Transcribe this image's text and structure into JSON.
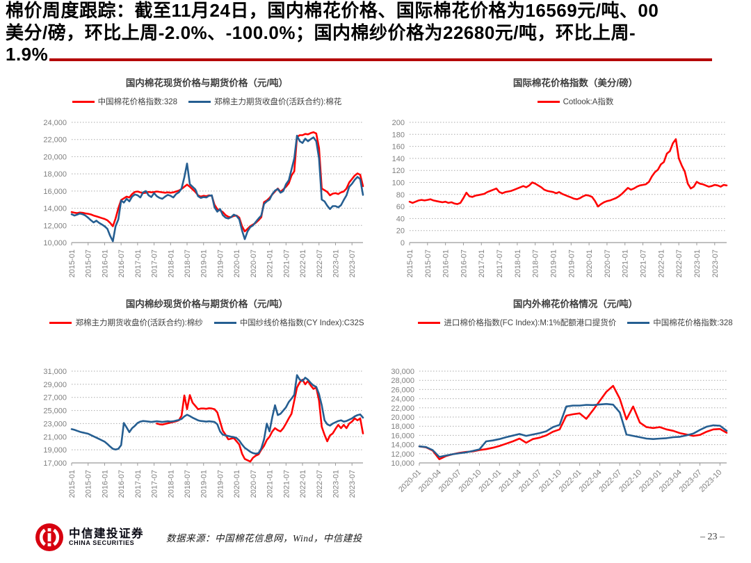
{
  "headline": {
    "lines": [
      "棉价周度跟踪：截至11月24日，国内棉花价格、国际棉花价格为16569元/吨、00",
      "美分/磅，环比上周-2.0%、-100.0%；国内棉纱价格为22680元/吨，环比上周-",
      "1.9%"
    ],
    "rule_color": "#b40000"
  },
  "colors": {
    "series_red": "#ff0000",
    "series_blue": "#255e91",
    "axis_label": "#7f7f7f",
    "gridline": "#a9a9a9"
  },
  "chart_data": [
    {
      "type": "line",
      "title": "国内棉花现货价格与期货价格（元/吨）",
      "x_start": "2015-01",
      "x_freq": "monthly",
      "x_tick_labels": [
        "2015-01",
        "2015-07",
        "2016-01",
        "2016-07",
        "2017-01",
        "2017-07",
        "2018-01",
        "2018-07",
        "2019-01",
        "2019-07",
        "2020-01",
        "2020-07",
        "2021-01",
        "2021-07",
        "2022-01",
        "2022-07",
        "2023-01",
        "2023-07"
      ],
      "tick_every": 6,
      "ylim": [
        10000,
        24000
      ],
      "y_step": 2000,
      "y_format": "thousands",
      "x_label_rotation": -90,
      "grid": "dotted",
      "legend_position": "top",
      "series": [
        {
          "name": "中国棉花价格指数:328",
          "color": "#ff0000",
          "values": [
            13550,
            13480,
            13420,
            13500,
            13460,
            13400,
            13350,
            13280,
            13150,
            13050,
            12950,
            12850,
            12750,
            12600,
            12300,
            11900,
            12800,
            14000,
            14950,
            15150,
            15350,
            15250,
            15650,
            15900,
            15950,
            15850,
            15750,
            15800,
            15900,
            15850,
            15880,
            15950,
            15900,
            15850,
            15800,
            15850,
            15800,
            15850,
            15950,
            16050,
            16250,
            16500,
            16750,
            16500,
            16200,
            15900,
            15500,
            15350,
            15450,
            15400,
            15500,
            15450,
            14400,
            13900,
            13750,
            13550,
            13200,
            13000,
            12950,
            13100,
            13150,
            12900,
            11900,
            11300,
            11600,
            11900,
            12100,
            12300,
            12600,
            12950,
            14700,
            14900,
            15200,
            15600,
            15950,
            16300,
            15900,
            16200,
            16500,
            16900,
            17800,
            18300,
            22300,
            22500,
            22500,
            22650,
            22600,
            22750,
            22850,
            22700,
            21000,
            16300,
            16100,
            15900,
            15500,
            15700,
            15750,
            15650,
            15850,
            15950,
            16300,
            17000,
            17400,
            17800,
            18050,
            17900,
            16569
          ]
        },
        {
          "name": "郑棉主力期货收盘价(活跃合约):棉花",
          "color": "#255e91",
          "values": [
            13300,
            13150,
            13250,
            13380,
            13300,
            13150,
            12900,
            12600,
            12350,
            12550,
            12300,
            12100,
            11900,
            11600,
            10800,
            10150,
            11900,
            12700,
            14900,
            14650,
            15100,
            14800,
            15350,
            15600,
            15500,
            15250,
            15850,
            16000,
            15500,
            15300,
            15750,
            15400,
            15200,
            15100,
            15350,
            15550,
            15450,
            15250,
            15650,
            15850,
            16300,
            17600,
            19200,
            16800,
            16500,
            16200,
            15400,
            15200,
            15300,
            15250,
            15450,
            15500,
            14100,
            13600,
            13900,
            13200,
            12900,
            12800,
            12950,
            13250,
            13100,
            12700,
            11400,
            10400,
            11300,
            11800,
            12000,
            12400,
            12800,
            13150,
            14500,
            14800,
            15000,
            15650,
            16050,
            16250,
            15800,
            16000,
            16800,
            17250,
            18500,
            19800,
            22450,
            21800,
            21600,
            22100,
            21800,
            22050,
            22250,
            21800,
            19800,
            15000,
            14800,
            14300,
            13900,
            14250,
            14250,
            14100,
            14350,
            14950,
            15500,
            16500,
            16850,
            17300,
            17650,
            17400,
            15550
          ]
        }
      ]
    },
    {
      "type": "line",
      "title": "国际棉花价格指数（美分/磅）",
      "x_start": "2015-01",
      "x_freq": "monthly",
      "x_tick_labels": [
        "2015-01",
        "2015-07",
        "2016-01",
        "2016-07",
        "2017-01",
        "2017-07",
        "2018-01",
        "2018-07",
        "2019-01",
        "2019-07",
        "2020-01",
        "2020-07",
        "2021-01",
        "2021-07",
        "2022-01",
        "2022-07",
        "2023-01",
        "2023-07"
      ],
      "tick_every": 6,
      "ylim": [
        0,
        200
      ],
      "y_step": 20,
      "y_format": "plain",
      "x_label_rotation": -90,
      "grid": "dotted",
      "legend_position": "top",
      "series": [
        {
          "name": "Cotlook:A指数",
          "color": "#ff0000",
          "values": [
            68,
            66,
            68,
            70,
            71,
            70,
            71,
            72,
            70,
            69,
            68,
            67,
            68,
            66,
            67,
            65,
            64,
            66,
            74,
            83,
            77,
            76,
            78,
            79,
            80,
            81,
            84,
            86,
            88,
            90,
            84,
            82,
            84,
            85,
            86,
            88,
            90,
            92,
            94,
            92,
            95,
            100,
            98,
            95,
            92,
            88,
            86,
            85,
            84,
            82,
            84,
            81,
            79,
            77,
            75,
            73,
            72,
            74,
            77,
            79,
            78,
            76,
            69,
            60,
            64,
            67,
            69,
            70,
            72,
            74,
            77,
            81,
            86,
            91,
            88,
            90,
            93,
            95,
            96,
            97,
            101,
            110,
            117,
            121,
            130,
            134,
            148,
            152,
            165,
            172,
            140,
            128,
            118,
            98,
            90,
            93,
            101,
            98,
            97,
            95,
            93,
            94,
            96,
            95,
            93,
            96,
            95
          ]
        }
      ]
    },
    {
      "type": "line",
      "title": "国内棉纱现货价格与期货价格（元/吨）",
      "x_start": "2015-01",
      "x_freq": "monthly",
      "x_tick_labels": [
        "2015-01",
        "2015-07",
        "2016-01",
        "2016-07",
        "2017-01",
        "2017-07",
        "2018-01",
        "2018-07",
        "2019-01",
        "2019-07",
        "2020-01",
        "2020-07",
        "2021-01",
        "2021-07",
        "2022-01",
        "2022-07",
        "2023-01",
        "2023-07"
      ],
      "tick_every": 6,
      "ylim": [
        17000,
        31000
      ],
      "y_step": 2000,
      "y_format": "thousands",
      "x_label_rotation": -90,
      "grid": "dotted",
      "legend_position": "top",
      "series": [
        {
          "name": "郑棉主力期货收盘价(活跃合约):棉纱",
          "color": "#ff0000",
          "values": [
            null,
            null,
            null,
            null,
            null,
            null,
            null,
            null,
            null,
            null,
            null,
            null,
            null,
            null,
            null,
            null,
            null,
            null,
            null,
            null,
            null,
            null,
            null,
            null,
            null,
            null,
            null,
            null,
            null,
            null,
            null,
            23000,
            22900,
            22850,
            22950,
            23050,
            23150,
            23250,
            23350,
            23500,
            24200,
            27300,
            25200,
            27350,
            26200,
            25700,
            25200,
            25300,
            25300,
            25250,
            25350,
            25300,
            25200,
            24700,
            23300,
            21900,
            21300,
            20600,
            20700,
            20800,
            20300,
            19800,
            18400,
            17600,
            17400,
            17200,
            17800,
            18100,
            18300,
            19000,
            19600,
            20500,
            21000,
            21800,
            22300,
            22000,
            21800,
            22300,
            23000,
            23800,
            24500,
            26500,
            28500,
            29300,
            29700,
            29000,
            29500,
            28800,
            28300,
            28500,
            26500,
            22500,
            21300,
            20300,
            21200,
            21500,
            22200,
            22800,
            22300,
            22800,
            22300,
            23000,
            23300,
            23800,
            23500,
            23800,
            21500
          ]
        },
        {
          "name": "中国纱线价格指数(CY Index):C32S",
          "color": "#255e91",
          "values": [
            22150,
            22050,
            21900,
            21750,
            21650,
            21550,
            21450,
            21250,
            21050,
            20850,
            20650,
            20450,
            20250,
            19900,
            19500,
            19150,
            19050,
            19150,
            19700,
            23100,
            22400,
            21700,
            22300,
            22650,
            23100,
            23300,
            23400,
            23350,
            23300,
            23250,
            23300,
            23350,
            23300,
            23250,
            23300,
            23350,
            23300,
            23350,
            23450,
            23550,
            23700,
            24100,
            24350,
            24150,
            23900,
            23700,
            23500,
            23400,
            23350,
            23300,
            23350,
            23300,
            23250,
            22900,
            21800,
            21300,
            21200,
            21100,
            21000,
            20950,
            20800,
            20400,
            19800,
            19300,
            19000,
            18700,
            18500,
            18400,
            18500,
            19200,
            20600,
            23000,
            21800,
            24000,
            25800,
            24300,
            24500,
            25000,
            25500,
            26300,
            26800,
            27400,
            30400,
            29700,
            29500,
            30000,
            29700,
            29200,
            28800,
            28600,
            27500,
            25800,
            23500,
            22900,
            22700,
            23000,
            23200,
            23400,
            23500,
            23300,
            23400,
            23600,
            23800,
            24100,
            24300,
            24400,
            23900
          ]
        }
      ]
    },
    {
      "type": "line",
      "title": "国内外棉花价格情况（元/吨）",
      "x_start": "2020-01",
      "x_freq": "monthly",
      "x_tick_labels": [
        "2020-01",
        "2020-04",
        "2020-07",
        "2020-10",
        "2021-01",
        "2021-04",
        "2021-07",
        "2021-10",
        "2022-01",
        "2022-04",
        "2022-07",
        "2022-10",
        "2023-01",
        "2023-04",
        "2023-07",
        "2023-10"
      ],
      "tick_every": 3,
      "ylim": [
        10000,
        30000
      ],
      "y_step": 2000,
      "y_format": "thousands",
      "x_label_rotation": -45,
      "grid": "dotted",
      "legend_position": "top",
      "series": [
        {
          "name": "进口棉价格指数(FC Index):M:1%配额港口提货价",
          "color": "#ff0000",
          "values": [
            13600,
            13400,
            12700,
            10800,
            11500,
            11900,
            12200,
            12400,
            12500,
            12800,
            13000,
            13300,
            13700,
            14200,
            14700,
            15300,
            14400,
            15200,
            15500,
            16000,
            16800,
            17300,
            20300,
            20600,
            20800,
            19600,
            21500,
            23500,
            25500,
            26800,
            24000,
            19500,
            22300,
            18800,
            17800,
            17600,
            17800,
            17300,
            17000,
            16500,
            16200,
            15900,
            16100,
            16800,
            17300,
            17400,
            16569
          ]
        },
        {
          "name": "中国棉花价格指数:328",
          "color": "#255e91",
          "values": [
            13600,
            13450,
            12800,
            11300,
            11600,
            11900,
            12100,
            12300,
            12600,
            12950,
            14700,
            14900,
            15200,
            15600,
            15950,
            16300,
            15900,
            16200,
            16500,
            16900,
            17800,
            18300,
            22300,
            22500,
            22500,
            22650,
            22600,
            22750,
            22850,
            22700,
            21000,
            16200,
            15900,
            15600,
            15300,
            15200,
            15300,
            15400,
            15600,
            15700,
            16000,
            16400,
            17200,
            17900,
            18200,
            18100,
            17000
          ]
        }
      ]
    }
  ],
  "footer": {
    "logo_cn": "中信建投证券",
    "logo_en": "CHINA SECURITIES",
    "source": "数据来源：中国棉花信息网，Wind，中信建投",
    "page": "– 23 –"
  }
}
